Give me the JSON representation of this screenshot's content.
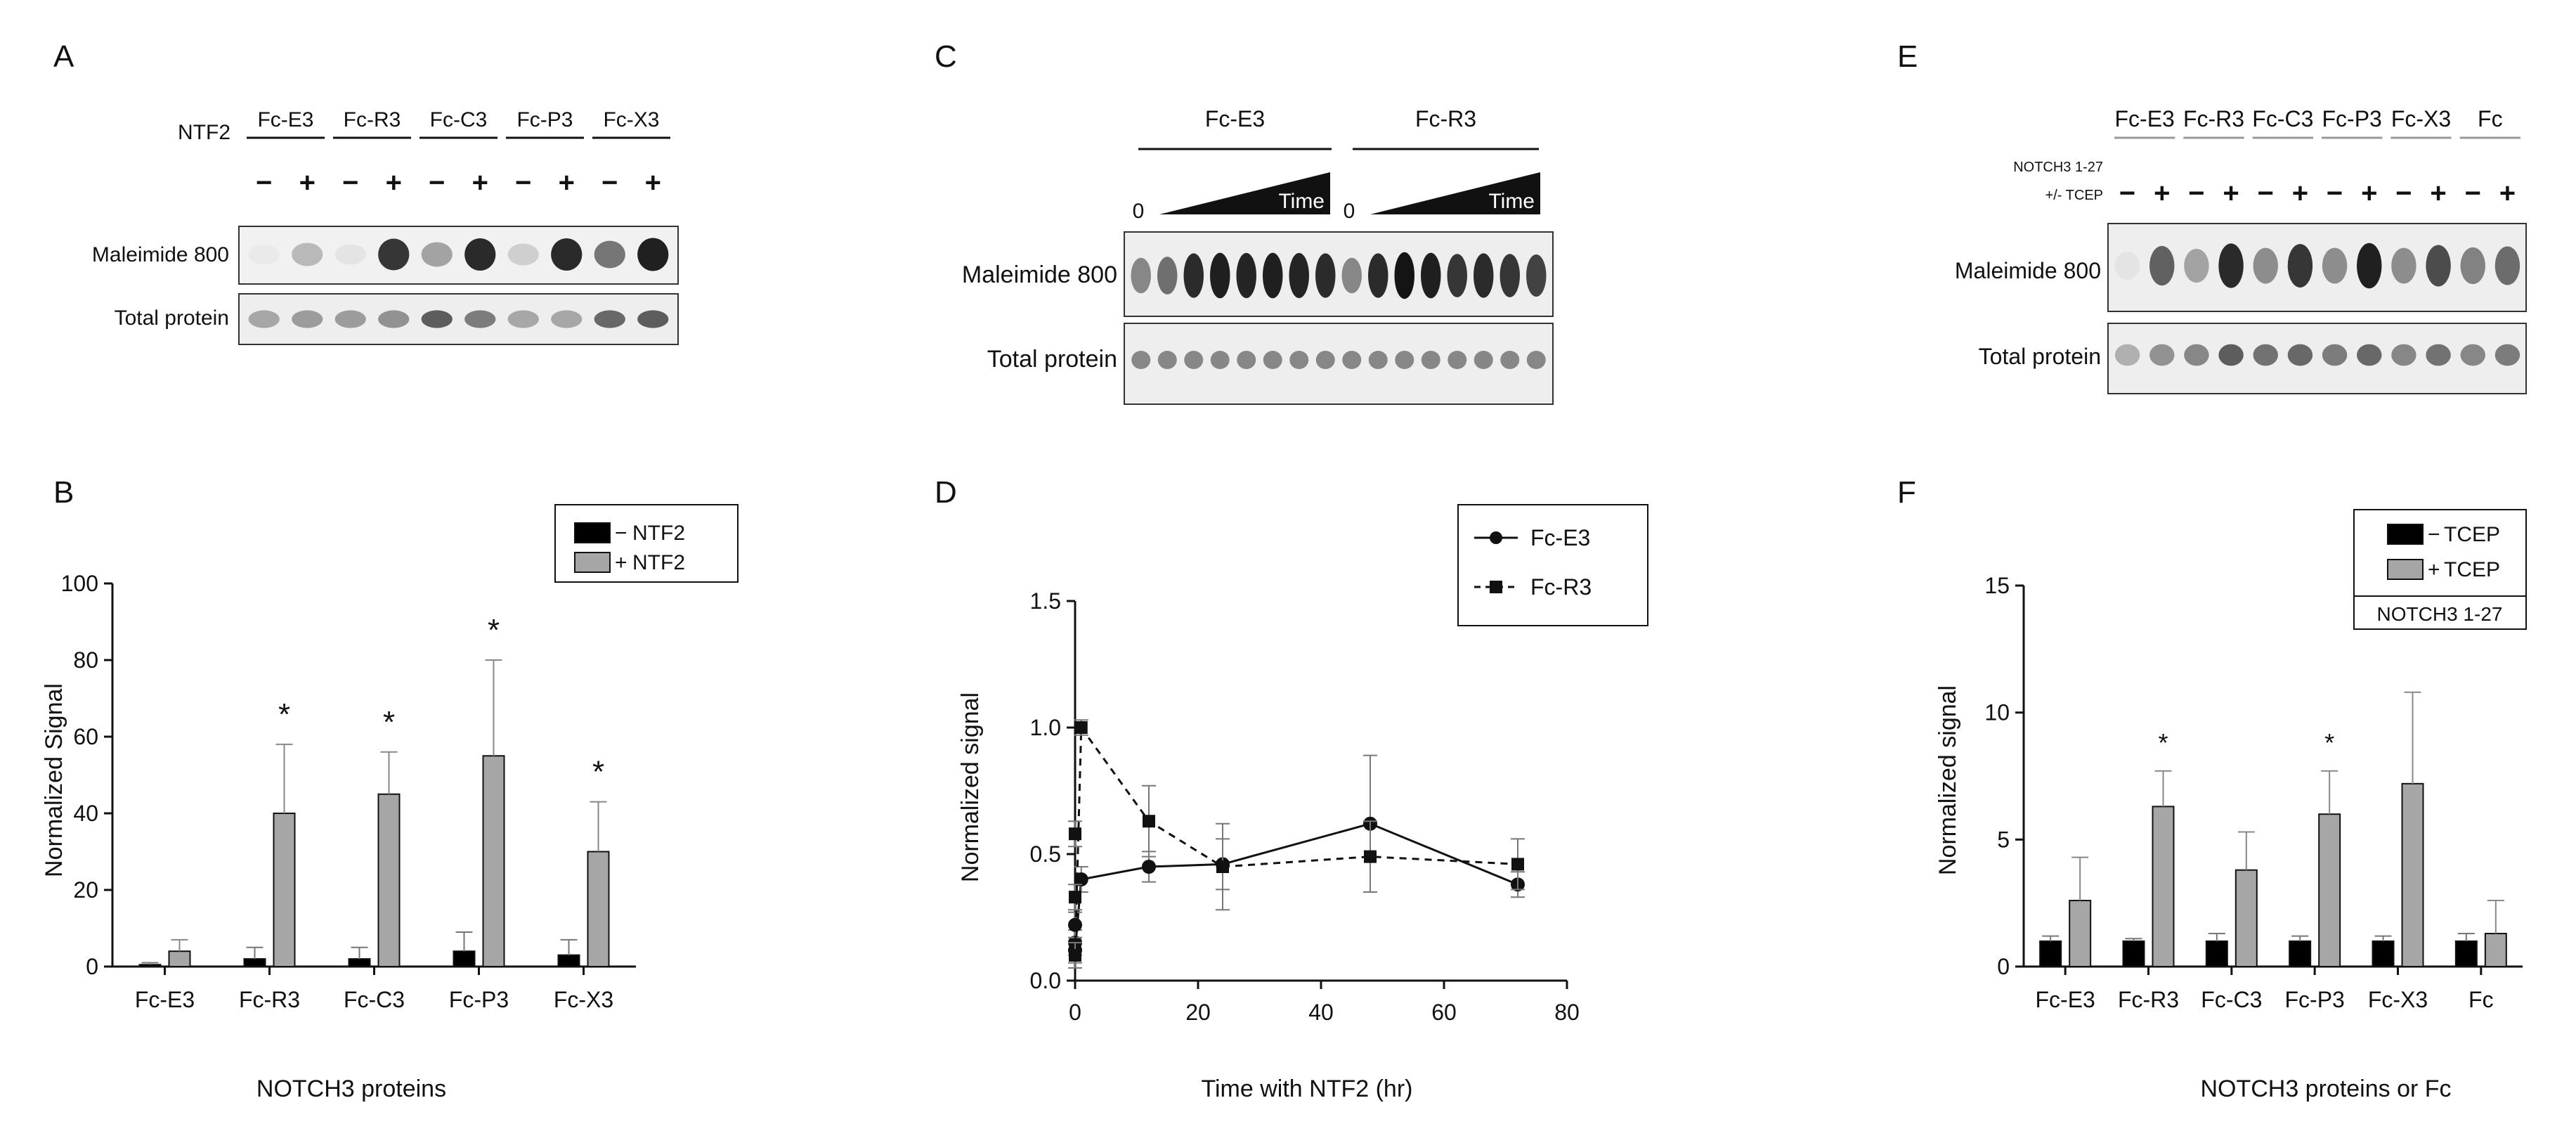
{
  "panel_labels": [
    "A",
    "B",
    "C",
    "D",
    "E",
    "F"
  ],
  "blot_A": {
    "groups": [
      "Fc-E3",
      "Fc-R3",
      "Fc-C3",
      "Fc-P3",
      "Fc-X3"
    ],
    "treatment_label": "NTF2",
    "signs": [
      "−",
      "+",
      "−",
      "+",
      "−",
      "+",
      "−",
      "+",
      "−",
      "+"
    ],
    "row_labels": [
      "Maleimide 800",
      "Total protein"
    ],
    "maleimide_intensity": [
      0.02,
      0.25,
      0.05,
      0.85,
      0.35,
      0.9,
      0.15,
      0.9,
      0.55,
      0.95
    ],
    "total_intensity": [
      0.35,
      0.4,
      0.4,
      0.45,
      0.7,
      0.55,
      0.35,
      0.35,
      0.65,
      0.7
    ]
  },
  "blot_C": {
    "groups": [
      "Fc-E3",
      "Fc-R3"
    ],
    "zero_label": "0",
    "time_label": "Time",
    "row_labels": [
      "Maleimide 800",
      "Total protein"
    ],
    "maleimide_intensity": [
      0.45,
      0.55,
      0.85,
      0.9,
      0.88,
      0.9,
      0.88,
      0.85,
      0.45,
      0.85,
      0.95,
      0.9,
      0.8,
      0.85,
      0.8,
      0.75
    ],
    "total_intensity": [
      0.45,
      0.45,
      0.45,
      0.45,
      0.45,
      0.45,
      0.45,
      0.45,
      0.45,
      0.45,
      0.45,
      0.45,
      0.45,
      0.45,
      0.45,
      0.45
    ]
  },
  "blot_E": {
    "groups": [
      "Fc-E3",
      "Fc-R3",
      "Fc-C3",
      "Fc-P3",
      "Fc-X3",
      "Fc"
    ],
    "treatment_label_1": "NOTCH3 1-27",
    "treatment_label_2": "+/- TCEP",
    "signs": [
      "−",
      "+",
      "−",
      "+",
      "−",
      "+",
      "−",
      "+",
      "−",
      "+",
      "−",
      "+"
    ],
    "row_labels": [
      "Maleimide 800",
      "Total protein"
    ],
    "maleimide_intensity": [
      0.05,
      0.65,
      0.35,
      0.9,
      0.45,
      0.85,
      0.45,
      0.95,
      0.45,
      0.75,
      0.5,
      0.6
    ],
    "total_intensity": [
      0.3,
      0.45,
      0.5,
      0.7,
      0.6,
      0.65,
      0.55,
      0.65,
      0.5,
      0.6,
      0.5,
      0.55
    ]
  },
  "chart_data": [
    {
      "panel": "B",
      "type": "bar",
      "categories": [
        "Fc-E3",
        "Fc-R3",
        "Fc-C3",
        "Fc-P3",
        "Fc-X3"
      ],
      "series": [
        {
          "name": "NTF2",
          "sign": "−",
          "color": "#000000",
          "values": [
            0.5,
            2,
            2,
            4,
            3
          ],
          "errors": [
            0.5,
            3,
            3,
            5,
            4
          ]
        },
        {
          "name": "NTF2",
          "sign": "+",
          "color": "#a6a6a6",
          "values": [
            4,
            40,
            45,
            55,
            30
          ],
          "errors": [
            3,
            18,
            11,
            25,
            13
          ]
        }
      ],
      "significance": [
        "",
        "*",
        "*",
        "*",
        "*"
      ],
      "xlabel": "NOTCH3 proteins",
      "ylabel": "Normalized Signal",
      "ylim": [
        0,
        100
      ],
      "yticks": [
        "0",
        "20",
        "40",
        "60",
        "80",
        "100"
      ],
      "legend_position": "top-right"
    },
    {
      "panel": "D",
      "type": "line",
      "series": [
        {
          "name": "Fc-E3",
          "style": "solid",
          "marker": "circle",
          "x": [
            0,
            0,
            0,
            1,
            12,
            24,
            48,
            72
          ],
          "y": [
            0.15,
            0.22,
            0.12,
            0.4,
            0.45,
            0.46,
            0.62,
            0.38
          ],
          "errors": [
            0.05,
            0.05,
            0.05,
            0.05,
            0.06,
            0.1,
            0.27,
            0.05
          ]
        },
        {
          "name": "Fc-R3",
          "style": "dashed",
          "marker": "square",
          "x": [
            0,
            0,
            0,
            1,
            12,
            24,
            48,
            72
          ],
          "y": [
            0.58,
            0.33,
            0.1,
            1.0,
            0.63,
            0.45,
            0.49,
            0.46
          ],
          "errors": [
            0.05,
            0.05,
            0.05,
            0.03,
            0.14,
            0.17,
            0.14,
            0.1
          ]
        }
      ],
      "xlabel": "Time with NTF2 (hr)",
      "ylabel": "Normalized signal",
      "xlim": [
        0,
        80
      ],
      "ylim": [
        0,
        1.5
      ],
      "xticks": [
        "0",
        "20",
        "40",
        "60",
        "80"
      ],
      "yticks": [
        "0.0",
        "0.5",
        "1.0",
        "1.5"
      ],
      "legend_position": "top-right"
    },
    {
      "panel": "F",
      "type": "bar",
      "categories": [
        "Fc-E3",
        "Fc-R3",
        "Fc-C3",
        "Fc-P3",
        "Fc-X3",
        "Fc"
      ],
      "series": [
        {
          "name": "TCEP",
          "sign": "−",
          "color": "#000000",
          "values": [
            1,
            1,
            1,
            1,
            1,
            1
          ],
          "errors": [
            0.2,
            0.1,
            0.3,
            0.2,
            0.2,
            0.3
          ]
        },
        {
          "name": "TCEP",
          "sign": "+",
          "color": "#a6a6a6",
          "values": [
            2.6,
            6.3,
            3.8,
            6.0,
            7.2,
            1.3
          ],
          "errors": [
            1.7,
            1.4,
            1.5,
            1.7,
            3.6,
            1.3
          ]
        }
      ],
      "significance": [
        "",
        "*",
        "",
        "*",
        "",
        ""
      ],
      "xlabel": "NOTCH3 proteins or Fc",
      "ylabel": "Normalized signal",
      "ylim": [
        0,
        15
      ],
      "yticks": [
        "0",
        "5",
        "10",
        "15"
      ],
      "legend_position": "top-right",
      "legend_note": "NOTCH3 1-27"
    }
  ]
}
